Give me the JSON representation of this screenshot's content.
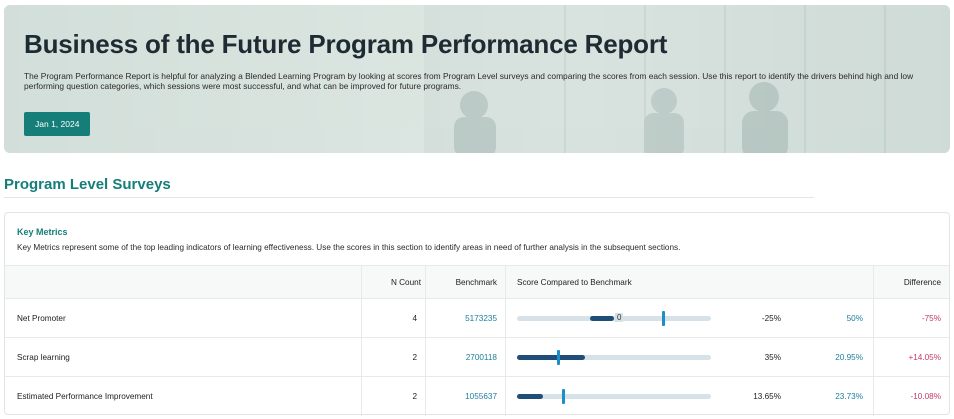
{
  "hero": {
    "title": "Business of the Future Program Performance Report",
    "description": "The Program Performance Report is helpful for analyzing a Blended Learning Program by looking at scores from Program Level surveys and comparing the scores from each session. Use this report to identify the drivers behind high and low performing question categories, which sessions were most successful, and what can be improved for future programs.",
    "date_button": "Jan 1, 2024"
  },
  "section": {
    "title": "Program Level Surveys"
  },
  "key_metrics": {
    "title": "Key Metrics",
    "description": "Key Metrics represent some of the top leading indicators of learning effectiveness. Use the scores in this section to identify areas in need of further analysis in the subsequent sections.",
    "columns": {
      "n_count": "N Count",
      "benchmark": "Benchmark",
      "score_compared": "Score Compared to Benchmark",
      "difference": "Difference"
    },
    "rows": [
      {
        "name": "Net Promoter",
        "n_count": "4",
        "benchmark": "5173235",
        "bar_zero_label": "0",
        "score": "-25%",
        "benchmark_score": "50%",
        "difference": "-75%",
        "score_value": -0.25,
        "benchmark_value": 0.5
      },
      {
        "name": "Scrap learning",
        "n_count": "2",
        "benchmark": "2700118",
        "score": "35%",
        "benchmark_score": "20.95%",
        "difference": "+14.05%",
        "score_value": 0.35,
        "benchmark_value": 0.2095
      },
      {
        "name": "Estimated Performance Improvement",
        "n_count": "2",
        "benchmark": "1055637",
        "score": "13.65%",
        "benchmark_score": "23.73%",
        "difference": "-10.08%",
        "score_value": 0.1365,
        "benchmark_value": 0.2373
      }
    ]
  },
  "colors": {
    "accent": "#157e79",
    "link": "#1d7f9c",
    "negative": "#c23a6a",
    "bar_fill": "#1f4e7a",
    "bar_marker": "#1c8fc9",
    "bar_track": "#d7e2e8"
  }
}
